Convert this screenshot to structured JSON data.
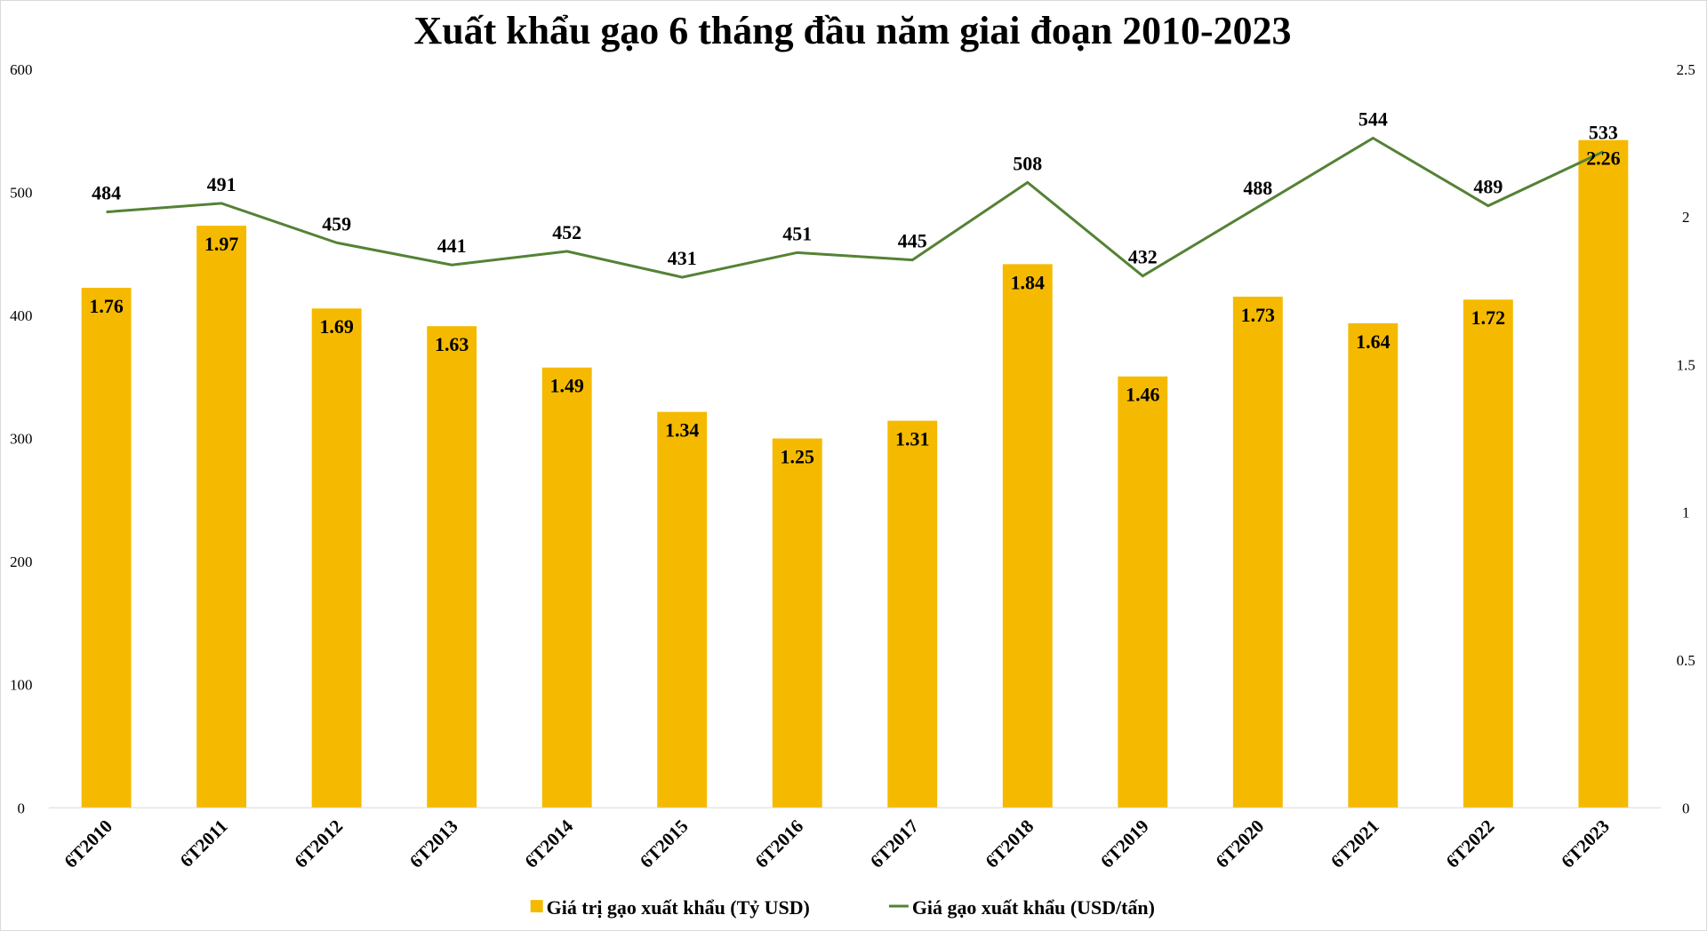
{
  "chart_data": {
    "type": "bar+line",
    "title": "Xuất khẩu gạo 6 tháng đầu năm giai đoạn 2010-2023",
    "categories": [
      "6T2010",
      "6T2011",
      "6T2012",
      "6T2013",
      "6T2014",
      "6T2015",
      "6T2016",
      "6T2017",
      "6T2018",
      "6T2019",
      "6T2020",
      "6T2021",
      "6T2022",
      "6T2023"
    ],
    "series": [
      {
        "name": "Giá trị gạo xuất khẩu (Tỷ USD)",
        "type": "bar",
        "axis": "right",
        "color": "#F5BA00",
        "values": [
          1.76,
          1.97,
          1.69,
          1.63,
          1.49,
          1.34,
          1.25,
          1.31,
          1.84,
          1.46,
          1.73,
          1.64,
          1.72,
          2.26
        ]
      },
      {
        "name": "Giá gạo xuất khẩu (USD/tấn)",
        "type": "line",
        "axis": "left",
        "color": "#548235",
        "values": [
          484,
          491,
          459,
          441,
          452,
          431,
          451,
          445,
          508,
          432,
          488,
          544,
          489,
          533
        ]
      }
    ],
    "left_axis": {
      "range": [
        0,
        600
      ],
      "ticks": [
        "0",
        "100",
        "200",
        "300",
        "400",
        "500",
        "600"
      ]
    },
    "right_axis": {
      "range": [
        0,
        2.5
      ],
      "ticks": [
        "0",
        "0.5",
        "1",
        "1.5",
        "2",
        "2.5"
      ]
    },
    "grid": false,
    "legend": "bottom"
  }
}
